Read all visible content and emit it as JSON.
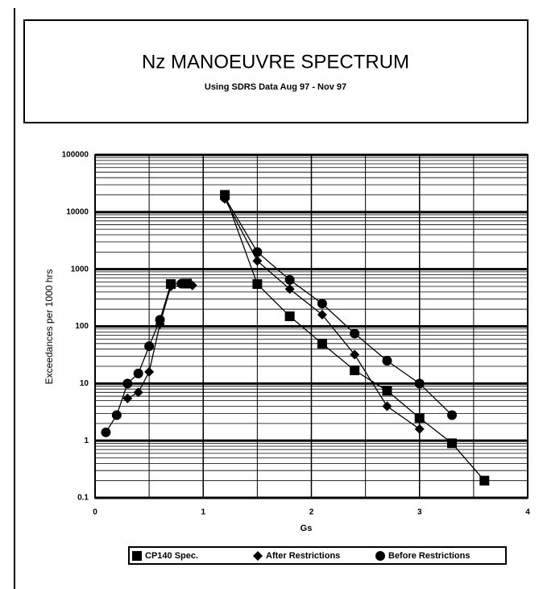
{
  "chart_data": {
    "type": "line",
    "title": "Nz MANOEUVRE SPECTRUM",
    "subtitle": "Using SDRS Data Aug 97 - Nov 97",
    "xlabel": "Gs",
    "ylabel": "Exceedances per 1000 hrs",
    "xlim": [
      0,
      4
    ],
    "xticks": [
      0,
      1,
      2,
      3,
      4
    ],
    "xgrid": [
      0.5,
      1.5,
      2.5,
      3.5
    ],
    "ylim": [
      0.1,
      100000
    ],
    "yticks": [
      100000,
      10000,
      1000,
      100,
      10,
      1,
      0.1
    ],
    "log_y": true,
    "grid": true,
    "legend": "bottom",
    "series": [
      {
        "name": "CP140 Spec.",
        "color": "#000000",
        "marker": "square",
        "x": [
          0.7,
          0.85,
          null,
          1.2,
          1.5,
          1.8,
          2.1,
          2.4,
          2.7,
          3.0,
          3.3,
          3.6
        ],
        "values": [
          550,
          560,
          null,
          20000,
          550,
          150,
          50,
          17,
          7.5,
          2.5,
          0.9,
          0.2
        ]
      },
      {
        "name": "After Restrictions",
        "color": "#000000",
        "marker": "diamond",
        "x": [
          0.3,
          0.4,
          0.5,
          0.6,
          0.7,
          0.9,
          null,
          1.2,
          1.5,
          1.8,
          2.1,
          2.4,
          2.7,
          3.0
        ],
        "values": [
          5.5,
          7,
          16,
          110,
          500,
          520,
          null,
          17000,
          1400,
          450,
          160,
          32,
          4,
          1.6
        ]
      },
      {
        "name": "Before Restrictions",
        "color": "#000000",
        "marker": "circle",
        "x": [
          0.1,
          0.2,
          0.3,
          0.4,
          0.5,
          0.6,
          0.7,
          0.8,
          null,
          1.2,
          1.5,
          1.8,
          2.1,
          2.4,
          2.7,
          3.0,
          3.3
        ],
        "values": [
          1.4,
          2.8,
          10,
          15,
          45,
          130,
          550,
          560,
          null,
          18000,
          2000,
          650,
          250,
          75,
          25,
          10,
          2.8
        ]
      }
    ]
  }
}
